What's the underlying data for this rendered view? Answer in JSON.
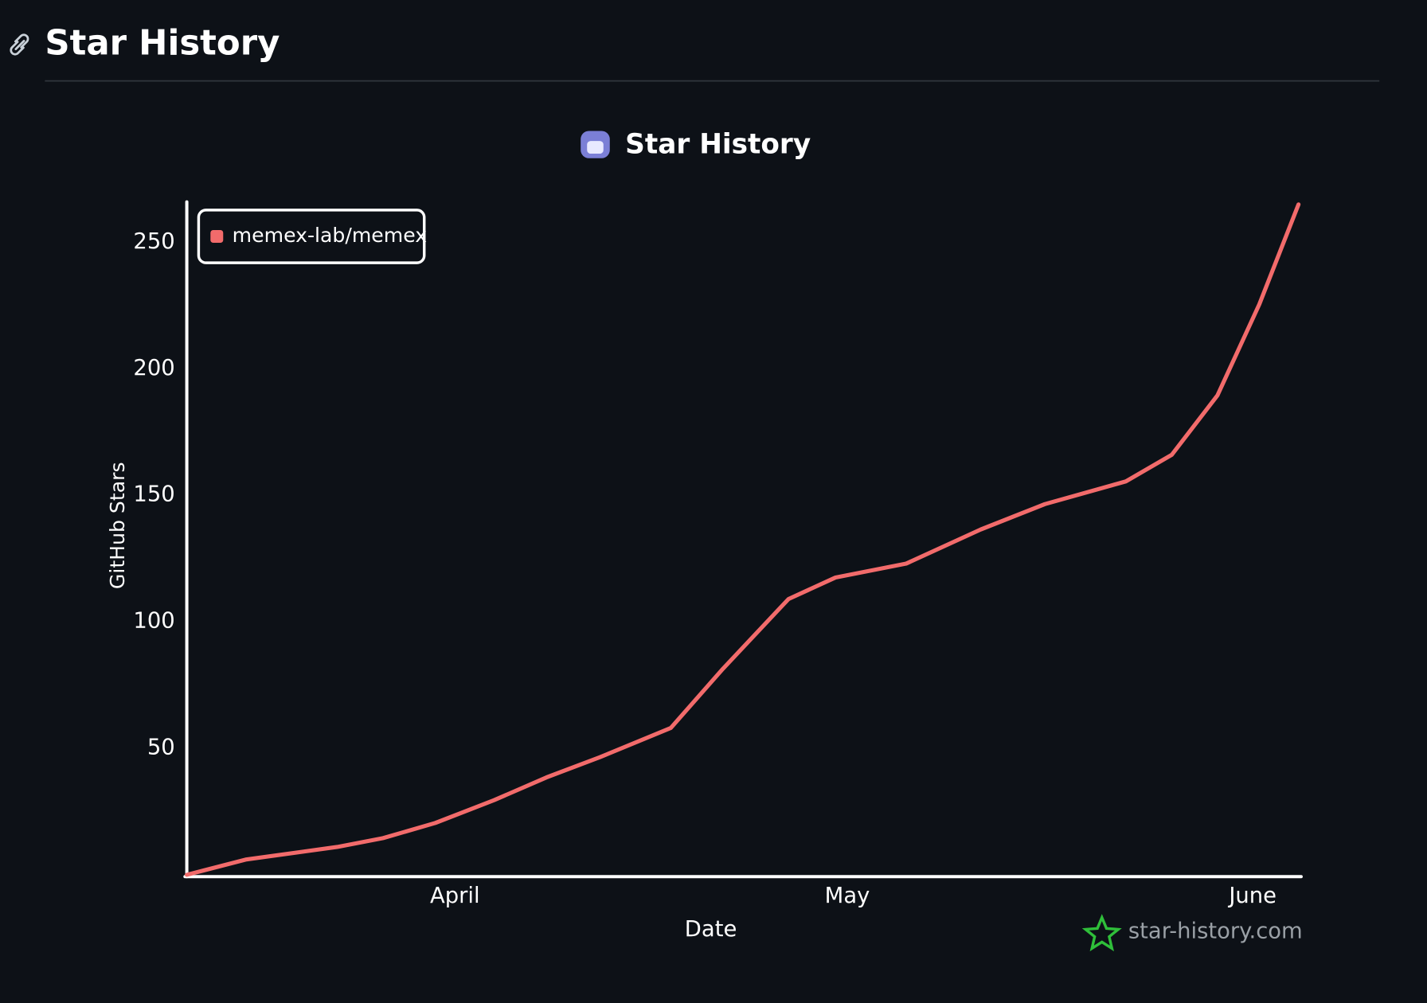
{
  "heading": {
    "title": "Star History"
  },
  "chart_data": {
    "type": "line",
    "title": "Star History",
    "x_label": "Date",
    "y_label": "GitHub Stars",
    "x": [
      0,
      4.5,
      11.5,
      15,
      19,
      23.5,
      27.5,
      31.6,
      37,
      41,
      46,
      49.6,
      55,
      60.7,
      65.6,
      71.8,
      75.3,
      78.8,
      82,
      85
    ],
    "series": [
      {
        "name": "memex-lab/memex",
        "color": "#f26b6b",
        "values": [
          0,
          6,
          11,
          14.5,
          20.5,
          29.5,
          38.5,
          46.5,
          58,
          81.5,
          109,
          117.5,
          123,
          136.5,
          146.5,
          155.5,
          166,
          189.5,
          225.5,
          265
        ]
      }
    ],
    "xlim": [
      0,
      85.2
    ],
    "xticks": [
      {
        "value": 20.5,
        "label": "April"
      },
      {
        "value": 50.5,
        "label": "May"
      },
      {
        "value": 81.5,
        "label": "June"
      }
    ],
    "ylim": [
      0,
      266
    ],
    "yticks": [
      50,
      100,
      150,
      200,
      250
    ],
    "grid": false,
    "legend": "upper left",
    "watermark": "star-history.com"
  }
}
